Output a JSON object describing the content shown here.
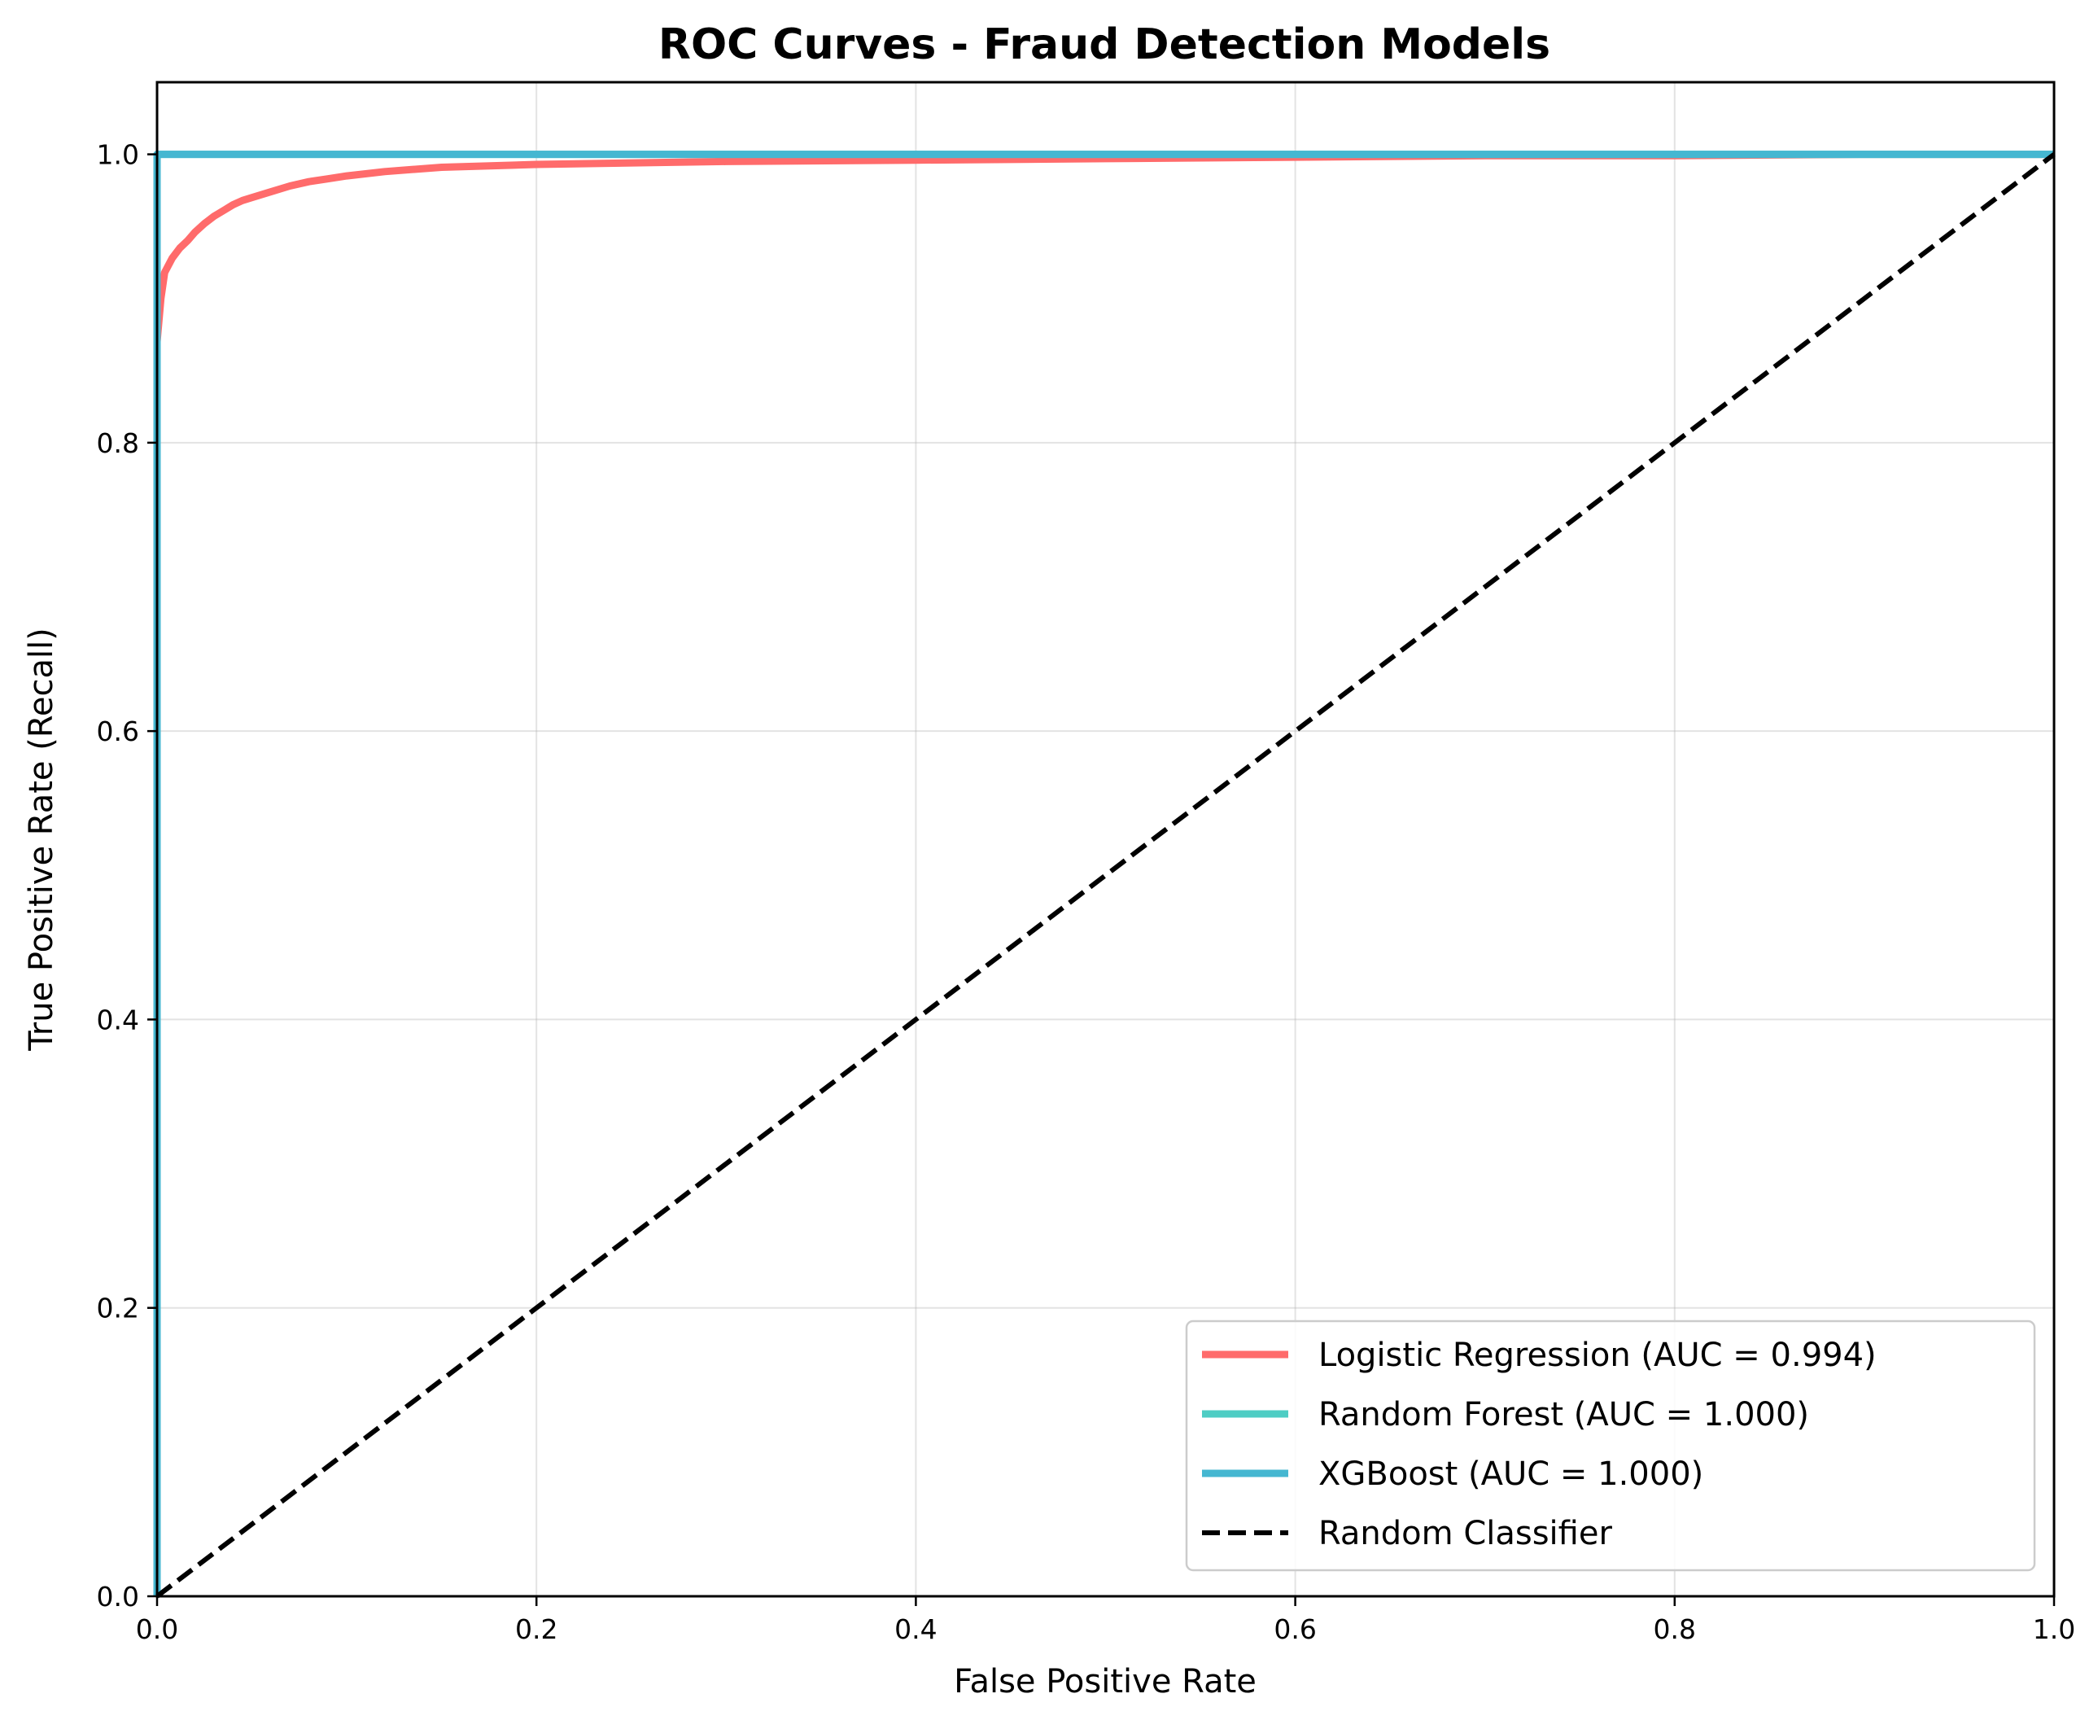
{
  "chart_data": {
    "type": "line",
    "title": "ROC Curves - Fraud Detection Models",
    "xlabel": "False Positive Rate",
    "ylabel": "True Positive Rate (Recall)",
    "xlim": [
      0.0,
      1.0
    ],
    "ylim": [
      0.0,
      1.05
    ],
    "xticks": [
      "0.0",
      "0.2",
      "0.4",
      "0.6",
      "0.8",
      "1.0"
    ],
    "yticks": [
      "0.0",
      "0.2",
      "0.4",
      "0.6",
      "0.8",
      "1.0"
    ],
    "xtick_values": [
      0.0,
      0.2,
      0.4,
      0.6,
      0.8,
      1.0
    ],
    "ytick_values": [
      0.0,
      0.2,
      0.4,
      0.6,
      0.8,
      1.0
    ],
    "grid": true,
    "legend_position": "bottom-right",
    "series": [
      {
        "name": "Logistic Regression (AUC = 0.994)",
        "color": "#ff6b6b",
        "style": "solid",
        "x": [
          0.0,
          0.0,
          0.002,
          0.004,
          0.008,
          0.012,
          0.016,
          0.02,
          0.025,
          0.03,
          0.035,
          0.04,
          0.045,
          0.05,
          0.06,
          0.07,
          0.08,
          0.09,
          0.1,
          0.12,
          0.15,
          0.2,
          0.3,
          0.4,
          0.5,
          0.6,
          0.7,
          0.8,
          0.9,
          1.0
        ],
        "y": [
          0.0,
          0.87,
          0.9,
          0.918,
          0.928,
          0.935,
          0.94,
          0.946,
          0.952,
          0.957,
          0.961,
          0.965,
          0.968,
          0.97,
          0.974,
          0.978,
          0.981,
          0.983,
          0.985,
          0.988,
          0.991,
          0.993,
          0.995,
          0.996,
          0.997,
          0.998,
          0.999,
          0.999,
          1.0,
          1.0
        ]
      },
      {
        "name": "Random Forest (AUC = 1.000)",
        "color": "#4ecdc4",
        "style": "solid",
        "x": [
          0.0,
          0.0,
          1.0
        ],
        "y": [
          0.0,
          1.0,
          1.0
        ]
      },
      {
        "name": "XGBoost (AUC = 1.000)",
        "color": "#45b7d1",
        "style": "solid",
        "x": [
          0.0,
          0.0,
          1.0
        ],
        "y": [
          0.0,
          1.0,
          1.0
        ]
      },
      {
        "name": "Random Classifier",
        "color": "#000000",
        "style": "dashed",
        "x": [
          0.0,
          1.0
        ],
        "y": [
          0.0,
          1.0
        ]
      }
    ]
  }
}
